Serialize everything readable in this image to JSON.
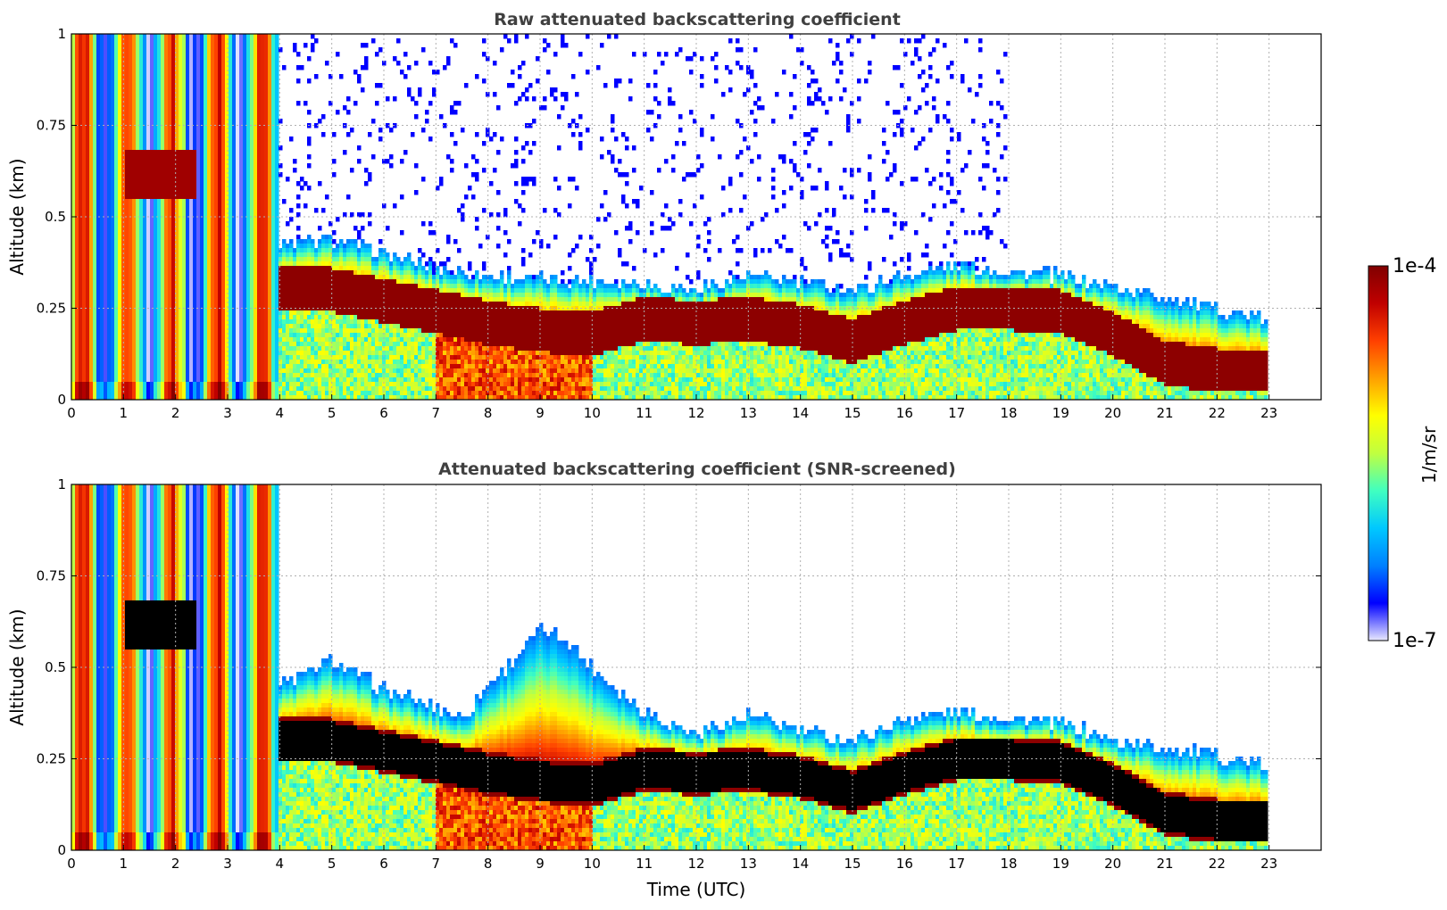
{
  "chart_data": [
    {
      "type": "heatmap",
      "title": "Raw attenuated backscattering coefficient",
      "xlabel": "",
      "ylabel": "Altitude (km)",
      "x_ticks": [
        "0",
        "1",
        "2",
        "3",
        "4",
        "5",
        "6",
        "7",
        "8",
        "9",
        "10",
        "11",
        "12",
        "13",
        "14",
        "15",
        "16",
        "17",
        "18",
        "19",
        "20",
        "21",
        "22",
        "23"
      ],
      "y_ticks": [
        "0",
        "0.25",
        "0.5",
        "0.75",
        "1"
      ],
      "xlim": [
        0,
        24
      ],
      "ylim": [
        0,
        1
      ],
      "grid": true,
      "screened": false,
      "layer_top_km": [
        [
          0,
          0.3
        ],
        [
          1,
          0.3
        ],
        [
          2,
          0.3
        ],
        [
          3,
          0.3
        ],
        [
          4,
          0.42
        ],
        [
          5,
          0.44
        ],
        [
          6,
          0.4
        ],
        [
          7,
          0.36
        ],
        [
          8,
          0.34
        ],
        [
          9,
          0.33
        ],
        [
          10,
          0.33
        ],
        [
          11,
          0.32
        ],
        [
          12,
          0.3
        ],
        [
          13,
          0.34
        ],
        [
          14,
          0.32
        ],
        [
          15,
          0.3
        ],
        [
          16,
          0.34
        ],
        [
          17,
          0.37
        ],
        [
          18,
          0.35
        ],
        [
          19,
          0.34
        ],
        [
          20,
          0.31
        ],
        [
          21,
          0.28
        ],
        [
          22,
          0.25
        ],
        [
          23,
          0.22
        ]
      ],
      "layer_core_km": [
        [
          0,
          0.3
        ],
        [
          4,
          0.3
        ],
        [
          5,
          0.3
        ],
        [
          6,
          0.27
        ],
        [
          7,
          0.24
        ],
        [
          8,
          0.21
        ],
        [
          9,
          0.19
        ],
        [
          10,
          0.18
        ],
        [
          11,
          0.22
        ],
        [
          12,
          0.21
        ],
        [
          13,
          0.22
        ],
        [
          14,
          0.2
        ],
        [
          15,
          0.16
        ],
        [
          16,
          0.21
        ],
        [
          17,
          0.25
        ],
        [
          18,
          0.25
        ],
        [
          19,
          0.24
        ],
        [
          20,
          0.18
        ],
        [
          21,
          0.1
        ],
        [
          22,
          0.08
        ],
        [
          23,
          0.08
        ]
      ]
    },
    {
      "type": "heatmap",
      "title": "Attenuated backscattering coefficient (SNR-screened)",
      "xlabel": "Time (UTC)",
      "ylabel": "Altitude (km)",
      "x_ticks": [
        "0",
        "1",
        "2",
        "3",
        "4",
        "5",
        "6",
        "7",
        "8",
        "9",
        "10",
        "11",
        "12",
        "13",
        "14",
        "15",
        "16",
        "17",
        "18",
        "19",
        "20",
        "21",
        "22",
        "23"
      ],
      "y_ticks": [
        "0",
        "0.25",
        "0.5",
        "0.75",
        "1"
      ],
      "xlim": [
        0,
        24
      ],
      "ylim": [
        0,
        1
      ],
      "grid": true,
      "screened": true,
      "layer_top_km": [
        [
          0,
          0.3
        ],
        [
          4,
          0.45
        ],
        [
          5,
          0.52
        ],
        [
          6,
          0.44
        ],
        [
          7,
          0.39
        ],
        [
          7.5,
          0.36
        ],
        [
          8,
          0.45
        ],
        [
          9,
          0.6
        ],
        [
          9.5,
          0.58
        ],
        [
          10,
          0.5
        ],
        [
          11,
          0.38
        ],
        [
          12,
          0.32
        ],
        [
          13,
          0.37
        ],
        [
          14,
          0.33
        ],
        [
          15,
          0.3
        ],
        [
          16,
          0.36
        ],
        [
          17,
          0.38
        ],
        [
          18,
          0.36
        ],
        [
          19,
          0.35
        ],
        [
          20,
          0.3
        ],
        [
          21,
          0.28
        ],
        [
          22,
          0.26
        ],
        [
          23,
          0.23
        ]
      ],
      "layer_core_km": [
        [
          0,
          0.3
        ],
        [
          4,
          0.3
        ],
        [
          5,
          0.3
        ],
        [
          6,
          0.27
        ],
        [
          7,
          0.24
        ],
        [
          8,
          0.21
        ],
        [
          9,
          0.19
        ],
        [
          10,
          0.18
        ],
        [
          11,
          0.22
        ],
        [
          12,
          0.21
        ],
        [
          13,
          0.22
        ],
        [
          14,
          0.2
        ],
        [
          15,
          0.16
        ],
        [
          16,
          0.21
        ],
        [
          17,
          0.25
        ],
        [
          18,
          0.25
        ],
        [
          19,
          0.24
        ],
        [
          20,
          0.18
        ],
        [
          21,
          0.1
        ],
        [
          22,
          0.08
        ],
        [
          23,
          0.08
        ]
      ]
    }
  ],
  "colorbar": {
    "label": "1/m/sr",
    "max_label": "1e-4",
    "min_label": "1e-7",
    "scale": "log",
    "colors": [
      "#e8e8ff",
      "#0000ff",
      "#0080ff",
      "#00c8ff",
      "#40ffc0",
      "#c0ff40",
      "#ffff00",
      "#ffa000",
      "#ff4000",
      "#c00000",
      "#800000"
    ]
  }
}
